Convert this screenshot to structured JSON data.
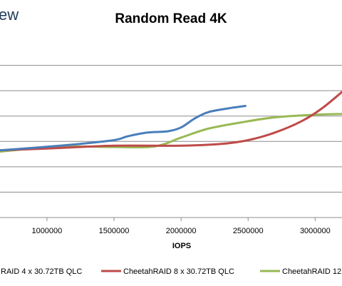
{
  "logo": {
    "text": "ew"
  },
  "chart_data": {
    "type": "line",
    "title": "Random Read 4K",
    "xlabel": "IOPS",
    "ylabel": "",
    "xlim": [
      650000,
      3200000
    ],
    "ylim": [
      0,
      7
    ],
    "x_ticks": [
      {
        "value": 1000000,
        "label": "1000000"
      },
      {
        "value": 1500000,
        "label": "1500000"
      },
      {
        "value": 2000000,
        "label": "2000000"
      },
      {
        "value": 2500000,
        "label": "2500000"
      },
      {
        "value": 3000000,
        "label": "3000000"
      }
    ],
    "y_gridlines": [
      1,
      2,
      3,
      4,
      5,
      6
    ],
    "grid": true,
    "legend_position": "bottom",
    "series": [
      {
        "name": "RAID 4 x 30.72TB QLC",
        "color": "#4a7ebb",
        "x": [
          650000,
          900000,
          1200000,
          1500000,
          1600000,
          1750000,
          1900000,
          2000000,
          2100000,
          2200000,
          2350000,
          2480000
        ],
        "y": [
          2.65,
          2.75,
          2.88,
          3.05,
          3.2,
          3.35,
          3.4,
          3.55,
          3.9,
          4.15,
          4.3,
          4.4
        ]
      },
      {
        "name": "CheetahRAID 8 x 30.72TB QLC",
        "color": "#be4b48",
        "x": [
          650000,
          1000000,
          1500000,
          2000000,
          2300000,
          2500000,
          2700000,
          2900000,
          3050000,
          3200000
        ],
        "y": [
          2.65,
          2.72,
          2.83,
          2.83,
          2.9,
          3.05,
          3.35,
          3.8,
          4.3,
          4.95
        ]
      },
      {
        "name": "CheetahRAID 12",
        "color": "#98b954",
        "x": [
          650000,
          900000,
          1200000,
          1500000,
          1800000,
          2000000,
          2200000,
          2450000,
          2700000,
          3000000,
          3200000
        ],
        "y": [
          2.6,
          2.72,
          2.8,
          2.78,
          2.8,
          3.15,
          3.5,
          3.75,
          3.95,
          4.05,
          4.08
        ]
      }
    ]
  }
}
